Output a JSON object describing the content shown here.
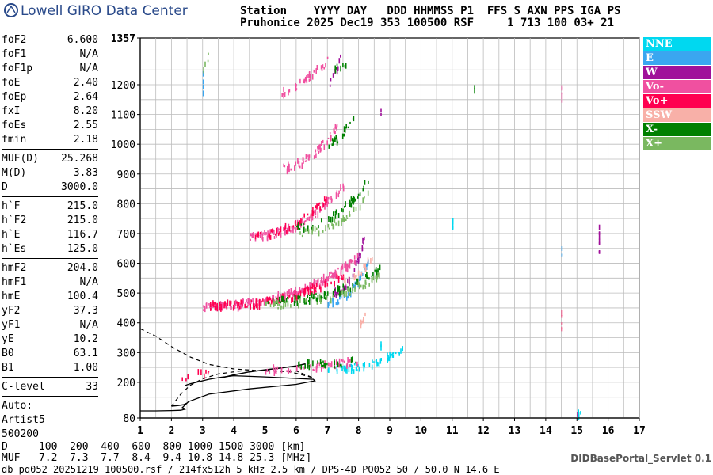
{
  "header": {
    "logo_text": "Lowell GIRO Data Center",
    "line1": "Station    YYYY DAY   DDD HHMMSS P1  FFS S AXN PPS IGA PS",
    "line2": "Pruhonice 2025 Dec19 353 100500 RSF     1 713 100 03+ 21"
  },
  "params": [
    {
      "k": "foF2",
      "v": "6.600"
    },
    {
      "k": "foF1",
      "v": "N/A"
    },
    {
      "k": "foF1p",
      "v": "N/A"
    },
    {
      "k": "foE",
      "v": "2.40"
    },
    {
      "k": "foEp",
      "v": "2.64"
    },
    {
      "k": "fxI",
      "v": "8.20"
    },
    {
      "k": "foEs",
      "v": "2.55"
    },
    {
      "k": "fmin",
      "v": "2.18"
    },
    {
      "sep": true
    },
    {
      "k": "MUF(D)",
      "v": "25.268"
    },
    {
      "k": "M(D)",
      "v": "3.83"
    },
    {
      "k": "D",
      "v": "3000.0"
    },
    {
      "sep": true
    },
    {
      "k": "h`F",
      "v": "215.0"
    },
    {
      "k": "h`F2",
      "v": "215.0"
    },
    {
      "k": "h`E",
      "v": "116.7"
    },
    {
      "k": "h`Es",
      "v": "125.0"
    },
    {
      "sep": true
    },
    {
      "k": "hmF2",
      "v": "204.0"
    },
    {
      "k": "hmF1",
      "v": "N/A"
    },
    {
      "k": "hmE",
      "v": "100.4"
    },
    {
      "k": "yF2",
      "v": "37.3"
    },
    {
      "k": "yF1",
      "v": "N/A"
    },
    {
      "k": "yE",
      "v": "10.2"
    },
    {
      "k": "B0",
      "v": "63.1"
    },
    {
      "k": "B1",
      "v": "1.00"
    },
    {
      "sep": true
    },
    {
      "k": "C-level",
      "v": "33"
    },
    {
      "sep": true
    },
    {
      "plain": "Auto:"
    },
    {
      "plain": "Artist5"
    },
    {
      "plain": "500200"
    }
  ],
  "legend": [
    {
      "label": "NNE",
      "color": "#00d8f0"
    },
    {
      "label": "E",
      "color": "#3aa6f0"
    },
    {
      "label": "W",
      "color": "#a0109a"
    },
    {
      "label": "Vo-",
      "color": "#f050a0"
    },
    {
      "label": "Vo+",
      "color": "#ff0050"
    },
    {
      "label": "SSW",
      "color": "#f8b0a8"
    },
    {
      "label": "X-",
      "color": "#008000"
    },
    {
      "label": "X+",
      "color": "#7ab860"
    }
  ],
  "bottom": {
    "d_row": "D     100  200  400  600  800 1000 1500 3000 [km]",
    "muf_row": "MUF   7.2  7.3  7.7  8.4  9.4 10.8 14.8 25.3 [MHz]",
    "servlet": "DIDBasePortal_Servlet 0.1",
    "footer": "db pq052 20251219 100500.rsf / 214fx512h 5 kHz 2.5 km / DPS-4D PQ052 50 / 50.0 N 14.6 E"
  },
  "chart_data": {
    "type": "scatter",
    "title": "",
    "xlabel": "",
    "ylabel": "",
    "xlim": [
      1,
      17
    ],
    "ylim": [
      80,
      1357
    ],
    "xticks": [
      1,
      2,
      3,
      4,
      5,
      6,
      7,
      8,
      9,
      10,
      11,
      12,
      13,
      14,
      15,
      16,
      17
    ],
    "yticks": [
      80,
      200,
      300,
      400,
      500,
      600,
      700,
      800,
      900,
      1000,
      1100,
      1200,
      1357
    ],
    "grid": true,
    "legend_position": "right",
    "traces": {
      "o_trace_solid": {
        "x": [
          1.0,
          1.5,
          2.0,
          2.3,
          2.45,
          2.35,
          2.55,
          3.2,
          4.5,
          6.0,
          6.6,
          6.55,
          6.0,
          5.0,
          4.0,
          3.6,
          3.2,
          2.8,
          2.6,
          2.45
        ],
        "y": [
          104,
          104,
          105,
          106,
          110,
          115,
          135,
          160,
          178,
          193,
          205,
          210,
          213,
          218,
          222,
          217,
          210,
          200,
          195,
          190
        ]
      },
      "x_trace_dashed": {
        "x": [
          1.0,
          1.5,
          2.0,
          2.6,
          3.2,
          4.0,
          5.0,
          6.0,
          6.55,
          6.2,
          5.8,
          5.0,
          4.2,
          3.5,
          3.0,
          2.6,
          2.3,
          2.0
        ],
        "y": [
          380,
          355,
          320,
          285,
          260,
          245,
          238,
          238,
          215,
          225,
          235,
          240,
          238,
          228,
          212,
          190,
          160,
          120
        ]
      },
      "e_layer_black": {
        "x": [
          2.0,
          2.2,
          2.4,
          2.5
        ],
        "y": [
          120,
          122,
          125,
          130
        ]
      },
      "f2_trace_black": {
        "x": [
          3.6,
          4.0,
          4.5,
          5.0,
          5.5,
          6.0,
          6.3
        ],
        "y": [
          215,
          225,
          235,
          242,
          248,
          255,
          262
        ]
      }
    },
    "series": [
      {
        "name": "NNE",
        "clusters": [
          {
            "x": [
              7.0,
              9.4
            ],
            "y": [
              245,
              310
            ],
            "n": 60,
            "curve": 0.8
          },
          {
            "x": [
              11.0,
              11.0
            ],
            "y": [
              700,
              760
            ],
            "n": 8,
            "curve": 0
          },
          {
            "x": [
              8.7,
              8.7
            ],
            "y": [
              310,
              330
            ],
            "n": 3,
            "curve": 0
          },
          {
            "x": [
              15.0,
              15.1
            ],
            "y": [
              80,
              110
            ],
            "n": 4,
            "curve": 0
          }
        ]
      },
      {
        "name": "E",
        "clusters": [
          {
            "x": [
              7.0,
              8.3
            ],
            "y": [
              470,
              600
            ],
            "n": 40,
            "curve": 0.6
          },
          {
            "x": [
              3.0,
              3.0
            ],
            "y": [
              1180,
              1230
            ],
            "n": 4,
            "curve": 0
          },
          {
            "x": [
              14.5,
              14.5
            ],
            "y": [
              630,
              660
            ],
            "n": 3,
            "curve": 0
          }
        ]
      },
      {
        "name": "W",
        "clusters": [
          {
            "x": [
              7.2,
              8.2
            ],
            "y": [
              500,
              700
            ],
            "n": 45,
            "curve": 0.6
          },
          {
            "x": [
              15.7,
              15.7
            ],
            "y": [
              640,
              720
            ],
            "n": 10,
            "curve": 0
          },
          {
            "x": [
              7.0,
              7.4
            ],
            "y": [
              1200,
              1290
            ],
            "n": 10,
            "curve": 0.3
          },
          {
            "x": [
              8.7,
              8.7
            ],
            "y": [
              1100,
              1110
            ],
            "n": 2,
            "curve": 0
          },
          {
            "x": [
              15.0,
              15.0
            ],
            "y": [
              85,
              95
            ],
            "n": 2,
            "curve": 0
          }
        ]
      },
      {
        "name": "Vo-",
        "clusters": [
          {
            "x": [
              3.0,
              8.0
            ],
            "y": [
              455,
              620
            ],
            "n": 220,
            "curve": 0.7
          },
          {
            "x": [
              4.5,
              7.5
            ],
            "y": [
              690,
              860
            ],
            "n": 110,
            "curve": 0.6
          },
          {
            "x": [
              5.5,
              7.3
            ],
            "y": [
              920,
              1060
            ],
            "n": 60,
            "curve": 0.5
          },
          {
            "x": [
              5.5,
              7.1
            ],
            "y": [
              1170,
              1290
            ],
            "n": 35,
            "curve": 0.2
          },
          {
            "x": [
              5.0,
              8.0
            ],
            "y": [
              240,
              270
            ],
            "n": 60,
            "curve": 0.2
          },
          {
            "x": [
              14.5,
              14.5
            ],
            "y": [
              1130,
              1200
            ],
            "n": 5,
            "curve": 0
          }
        ]
      },
      {
        "name": "Vo+",
        "clusters": [
          {
            "x": [
              3.2,
              7.5
            ],
            "y": [
              455,
              560
            ],
            "n": 120,
            "curve": 0.7
          },
          {
            "x": [
              4.5,
              7.0
            ],
            "y": [
              690,
              820
            ],
            "n": 50,
            "curve": 0.6
          },
          {
            "x": [
              2.0,
              3.2
            ],
            "y": [
              210,
              230
            ],
            "n": 10,
            "curve": 0.1
          },
          {
            "x": [
              14.5,
              14.5
            ],
            "y": [
              370,
              440
            ],
            "n": 5,
            "curve": 0
          }
        ]
      },
      {
        "name": "SSW",
        "clusters": [
          {
            "x": [
              8.0,
              8.2
            ],
            "y": [
              380,
              420
            ],
            "n": 8,
            "curve": 0
          },
          {
            "x": [
              7.5,
              8.5
            ],
            "y": [
              540,
              640
            ],
            "n": 20,
            "curve": 0.5
          }
        ]
      },
      {
        "name": "X-",
        "clusters": [
          {
            "x": [
              5.0,
              8.7
            ],
            "y": [
              470,
              580
            ],
            "n": 90,
            "curve": 0.7
          },
          {
            "x": [
              6.0,
              8.3
            ],
            "y": [
              720,
              880
            ],
            "n": 50,
            "curve": 0.6
          },
          {
            "x": [
              7.0,
              7.9
            ],
            "y": [
              1000,
              1110
            ],
            "n": 20,
            "curve": 0.4
          },
          {
            "x": [
              7.1,
              7.9
            ],
            "y": [
              1250,
              1290
            ],
            "n": 8,
            "curve": 0
          },
          {
            "x": [
              6.0,
              8.0
            ],
            "y": [
              255,
              270
            ],
            "n": 30,
            "curve": 0.1
          },
          {
            "x": [
              11.7,
              11.7
            ],
            "y": [
              1180,
              1190
            ],
            "n": 2,
            "curve": 0
          }
        ]
      },
      {
        "name": "X+",
        "clusters": [
          {
            "x": [
              5.0,
              8.7
            ],
            "y": [
              460,
              560
            ],
            "n": 60,
            "curve": 0.7
          },
          {
            "x": [
              6.0,
              8.3
            ],
            "y": [
              700,
              830
            ],
            "n": 40,
            "curve": 0.6
          },
          {
            "x": [
              3.0,
              3.2
            ],
            "y": [
              1250,
              1300
            ],
            "n": 4,
            "curve": 0
          }
        ]
      }
    ]
  }
}
